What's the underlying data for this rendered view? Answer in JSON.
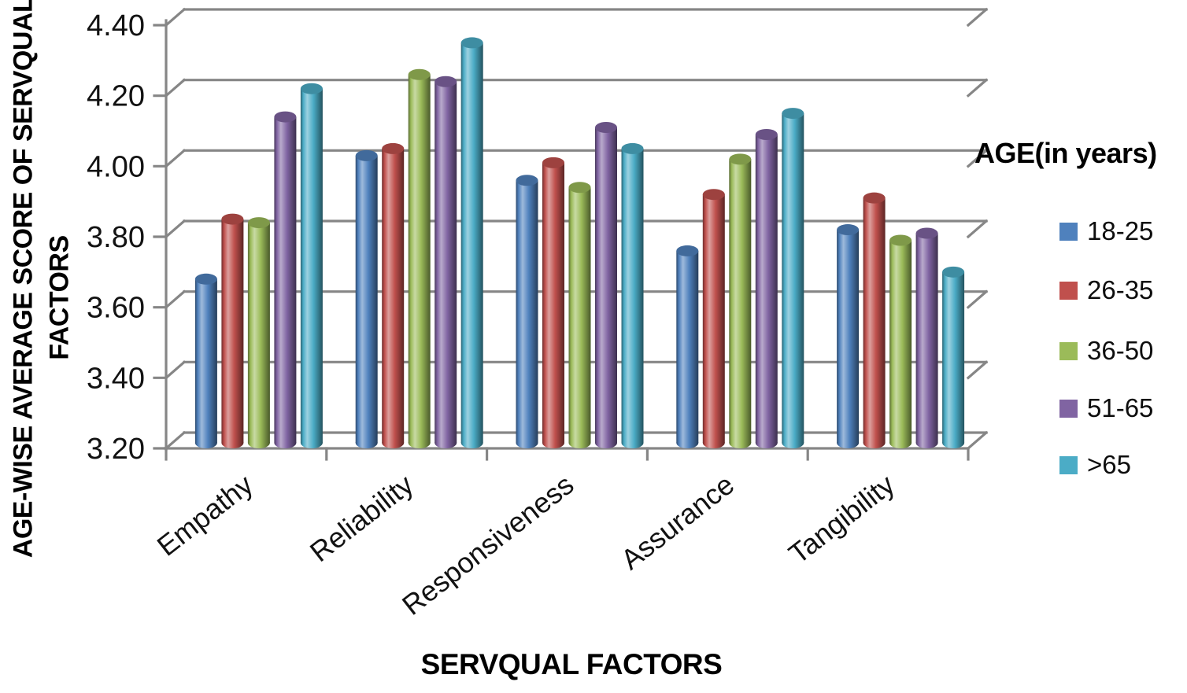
{
  "page": {
    "background": "#ffffff"
  },
  "chart_data": {
    "type": "bar",
    "subtype": "3d-cylinder",
    "title": "",
    "xlabel": "SERVQUAL FACTORS",
    "ylabel": "AGE-WISE AVERAGE SCORE OF SERVQUAL FACTORS",
    "ylabel_lines": [
      "AGE-WISE AVERAGE SCORE OF SERVQUAL",
      "FACTORS"
    ],
    "legend_title": "AGE(in years)",
    "legend_position": "right",
    "categories": [
      "Empathy",
      "Reliability",
      "Responsiveness",
      "Assurance",
      "Tangibility"
    ],
    "series": [
      {
        "name": "18-25",
        "color": "#4F81BD",
        "values": [
          3.68,
          4.03,
          3.96,
          3.76,
          3.82
        ]
      },
      {
        "name": "26-35",
        "color": "#C0504D",
        "values": [
          3.85,
          4.05,
          4.01,
          3.92,
          3.91
        ]
      },
      {
        "name": "36-50",
        "color": "#9BBB59",
        "values": [
          3.84,
          4.26,
          3.94,
          4.02,
          3.79
        ]
      },
      {
        "name": "51-65",
        "color": "#8064A2",
        "values": [
          4.14,
          4.24,
          4.11,
          4.09,
          3.81
        ]
      },
      {
        "name": ">65",
        "color": "#4BACC6",
        "values": [
          4.22,
          4.35,
          4.05,
          4.15,
          3.7
        ]
      }
    ],
    "y_ticks": [
      "4.40",
      "4.20",
      "4.00",
      "3.80",
      "3.60",
      "3.40",
      "3.20"
    ],
    "ylim": [
      3.2,
      4.4
    ],
    "y_tick_step": 0.2,
    "grid": true,
    "gridline_color": "#868686",
    "axis_color": "#868686",
    "text_color": "#121212"
  }
}
